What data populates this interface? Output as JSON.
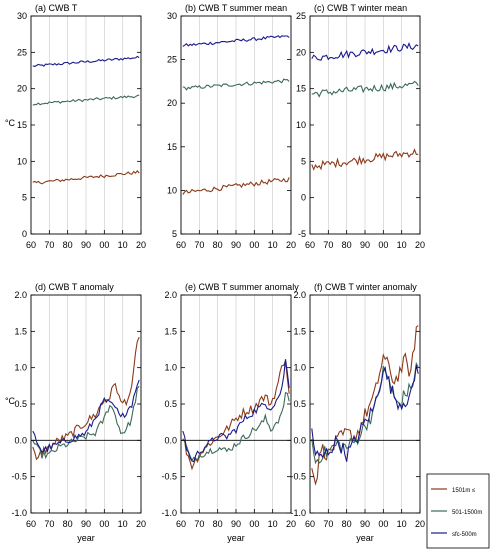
{
  "x_ticks": [
    "60",
    "70",
    "80",
    "90",
    "00",
    "10",
    "20"
  ],
  "unit_label": "°C",
  "colors": {
    "high": "#8b3a1a",
    "mid": "#3d6b57",
    "low": "#1a1a8c"
  },
  "legend": [
    "1501m ≤",
    "501-1500m",
    "sfc-500m"
  ],
  "chart_data": [
    {
      "type": "line",
      "title": "(a) CWB T",
      "xlabel": "",
      "ylabel": "°C",
      "ylim": [
        0,
        30
      ],
      "yticks": [
        "0",
        "5",
        "10",
        "15",
        "20",
        "25",
        "30"
      ],
      "x": [
        1961,
        2019
      ],
      "series": [
        {
          "name": "sfc-500m",
          "start": 23.1,
          "end": 24.3,
          "noise": 0.18
        },
        {
          "name": "501-1500m",
          "start": 17.9,
          "end": 19.0,
          "noise": 0.18
        },
        {
          "name": "1501m ≤",
          "start": 7.0,
          "end": 8.5,
          "noise": 0.22
        }
      ]
    },
    {
      "type": "line",
      "title": "(b) CWB T summer mean",
      "xlabel": "",
      "ylabel": "",
      "ylim": [
        5,
        30
      ],
      "yticks": [
        "5",
        "10",
        "15",
        "20",
        "25",
        "30"
      ],
      "x": [
        1961,
        2019
      ],
      "series": [
        {
          "name": "sfc-500m",
          "start": 26.6,
          "end": 27.7,
          "noise": 0.18
        },
        {
          "name": "501-1500m",
          "start": 21.7,
          "end": 22.6,
          "noise": 0.2
        },
        {
          "name": "1501m ≤",
          "start": 9.7,
          "end": 11.3,
          "noise": 0.28
        }
      ]
    },
    {
      "type": "line",
      "title": "(c) CWB T winter mean",
      "xlabel": "",
      "ylabel": "",
      "ylim": [
        -5,
        25
      ],
      "yticks": [
        "-5",
        "0",
        "5",
        "10",
        "15",
        "20",
        "25"
      ],
      "x": [
        1961,
        2019
      ],
      "series": [
        {
          "name": "sfc-500m",
          "start": 19.2,
          "end": 20.9,
          "noise": 0.5
        },
        {
          "name": "501-1500m",
          "start": 14.3,
          "end": 15.6,
          "noise": 0.5
        },
        {
          "name": "1501m ≤",
          "start": 4.3,
          "end": 6.3,
          "noise": 0.55
        }
      ]
    },
    {
      "type": "line",
      "title": "(d) CWB T anomaly",
      "xlabel": "year",
      "ylabel": "°C",
      "ylim": [
        -1.0,
        2.0
      ],
      "yticks": [
        "-1.0",
        "-0.5",
        "0.0",
        "0.5",
        "1.0",
        "1.5",
        "2.0"
      ],
      "x": [
        1961,
        2019
      ],
      "series": [
        {
          "name": "1501m ≤",
          "keys": [
            [
              1961,
              -0.1
            ],
            [
              1963,
              -0.3
            ],
            [
              1966,
              -0.15
            ],
            [
              1970,
              -0.1
            ],
            [
              1975,
              0.0
            ],
            [
              1980,
              0.05
            ],
            [
              1985,
              0.15
            ],
            [
              1990,
              0.25
            ],
            [
              1995,
              0.35
            ],
            [
              2000,
              0.55
            ],
            [
              2003,
              0.6
            ],
            [
              2006,
              0.8
            ],
            [
              2009,
              0.5
            ],
            [
              2012,
              0.55
            ],
            [
              2015,
              0.7
            ],
            [
              2018,
              1.4
            ]
          ],
          "noise": 0.06
        },
        {
          "name": "501-1500m",
          "keys": [
            [
              1961,
              0.0
            ],
            [
              1963,
              -0.1
            ],
            [
              1966,
              -0.2
            ],
            [
              1970,
              -0.2
            ],
            [
              1975,
              -0.1
            ],
            [
              1980,
              -0.05
            ],
            [
              1985,
              0.0
            ],
            [
              1990,
              0.05
            ],
            [
              1995,
              0.1
            ],
            [
              2000,
              0.3
            ],
            [
              2003,
              0.5
            ],
            [
              2006,
              0.35
            ],
            [
              2009,
              0.1
            ],
            [
              2012,
              0.15
            ],
            [
              2015,
              0.3
            ],
            [
              2018,
              0.7
            ]
          ],
          "noise": 0.05
        },
        {
          "name": "sfc-500m",
          "keys": [
            [
              1961,
              0.1
            ],
            [
              1963,
              0.0
            ],
            [
              1966,
              -0.15
            ],
            [
              1970,
              -0.1
            ],
            [
              1975,
              -0.05
            ],
            [
              1980,
              0.0
            ],
            [
              1985,
              0.05
            ],
            [
              1990,
              0.1
            ],
            [
              1995,
              0.3
            ],
            [
              2000,
              0.55
            ],
            [
              2003,
              0.5
            ],
            [
              2006,
              0.45
            ],
            [
              2009,
              0.3
            ],
            [
              2012,
              0.4
            ],
            [
              2015,
              0.5
            ],
            [
              2018,
              0.8
            ]
          ],
          "noise": 0.05
        }
      ]
    },
    {
      "type": "line",
      "title": "(e) CWB T summer anomaly",
      "xlabel": "year",
      "ylabel": "",
      "ylim": [
        -1.0,
        2.0
      ],
      "yticks": [
        "-1.0",
        "-0.5",
        "0.0",
        "0.5",
        "1.0",
        "1.5",
        "2.0"
      ],
      "x": [
        1961,
        2019
      ],
      "series": [
        {
          "name": "1501m ≤",
          "keys": [
            [
              1961,
              0.05
            ],
            [
              1963,
              -0.15
            ],
            [
              1966,
              -0.35
            ],
            [
              1970,
              -0.2
            ],
            [
              1975,
              -0.05
            ],
            [
              1980,
              0.05
            ],
            [
              1985,
              0.15
            ],
            [
              1990,
              0.3
            ],
            [
              1995,
              0.4
            ],
            [
              2000,
              0.45
            ],
            [
              2003,
              0.55
            ],
            [
              2006,
              0.6
            ],
            [
              2009,
              0.5
            ],
            [
              2012,
              0.7
            ],
            [
              2015,
              1.0
            ],
            [
              2017,
              1.15
            ],
            [
              2019,
              0.6
            ]
          ],
          "noise": 0.06
        },
        {
          "name": "501-1500m",
          "keys": [
            [
              1961,
              0.05
            ],
            [
              1963,
              -0.1
            ],
            [
              1966,
              -0.3
            ],
            [
              1970,
              -0.2
            ],
            [
              1975,
              -0.15
            ],
            [
              1980,
              -0.1
            ],
            [
              1985,
              -0.15
            ],
            [
              1990,
              -0.05
            ],
            [
              1995,
              0.05
            ],
            [
              2000,
              0.15
            ],
            [
              2003,
              0.2
            ],
            [
              2006,
              0.3
            ],
            [
              2009,
              0.15
            ],
            [
              2012,
              0.25
            ],
            [
              2015,
              0.35
            ],
            [
              2017,
              0.65
            ],
            [
              2019,
              0.55
            ]
          ],
          "noise": 0.05
        },
        {
          "name": "sfc-500m",
          "keys": [
            [
              1961,
              0.15
            ],
            [
              1963,
              -0.1
            ],
            [
              1966,
              -0.3
            ],
            [
              1970,
              -0.15
            ],
            [
              1975,
              -0.05
            ],
            [
              1980,
              0.05
            ],
            [
              1985,
              0.05
            ],
            [
              1990,
              0.15
            ],
            [
              1995,
              0.3
            ],
            [
              2000,
              0.4
            ],
            [
              2003,
              0.45
            ],
            [
              2006,
              0.5
            ],
            [
              2009,
              0.45
            ],
            [
              2012,
              0.55
            ],
            [
              2015,
              0.7
            ],
            [
              2017,
              1.1
            ],
            [
              2019,
              0.75
            ]
          ],
          "noise": 0.05
        }
      ]
    },
    {
      "type": "line",
      "title": "(f) CWB T winter anomaly",
      "xlabel": "year",
      "ylabel": "",
      "ylim": [
        -1.0,
        2.0
      ],
      "yticks": [
        "-1.0",
        "-0.5",
        "0.0",
        "0.5",
        "1.0",
        "1.5",
        "2.0"
      ],
      "x": [
        1961,
        2019
      ],
      "series": [
        {
          "name": "1501m ≤",
          "keys": [
            [
              1961,
              -0.3
            ],
            [
              1963,
              -0.6
            ],
            [
              1966,
              -0.1
            ],
            [
              1970,
              -0.2
            ],
            [
              1975,
              0.0
            ],
            [
              1980,
              0.1
            ],
            [
              1985,
              0.05
            ],
            [
              1990,
              0.35
            ],
            [
              1995,
              0.6
            ],
            [
              2000,
              1.15
            ],
            [
              2003,
              1.0
            ],
            [
              2006,
              0.8
            ],
            [
              2009,
              0.95
            ],
            [
              2012,
              1.1
            ],
            [
              2015,
              0.9
            ],
            [
              2018,
              1.55
            ]
          ],
          "noise": 0.1
        },
        {
          "name": "501-1500m",
          "keys": [
            [
              1961,
              0.0
            ],
            [
              1963,
              -0.3
            ],
            [
              1966,
              -0.2
            ],
            [
              1970,
              -0.15
            ],
            [
              1975,
              -0.05
            ],
            [
              1980,
              -0.1
            ],
            [
              1985,
              0.0
            ],
            [
              1990,
              0.2
            ],
            [
              1995,
              0.4
            ],
            [
              2000,
              0.95
            ],
            [
              2003,
              0.85
            ],
            [
              2006,
              0.55
            ],
            [
              2009,
              0.5
            ],
            [
              2012,
              0.65
            ],
            [
              2015,
              0.7
            ],
            [
              2018,
              1.0
            ]
          ],
          "noise": 0.1
        },
        {
          "name": "sfc-500m",
          "keys": [
            [
              1961,
              0.15
            ],
            [
              1963,
              -0.2
            ],
            [
              1966,
              -0.25
            ],
            [
              1970,
              -0.15
            ],
            [
              1975,
              0.0
            ],
            [
              1980,
              -0.2
            ],
            [
              1985,
              0.0
            ],
            [
              1990,
              0.25
            ],
            [
              1995,
              0.45
            ],
            [
              2000,
              1.0
            ],
            [
              2003,
              0.8
            ],
            [
              2006,
              0.6
            ],
            [
              2009,
              0.5
            ],
            [
              2012,
              0.55
            ],
            [
              2015,
              0.6
            ],
            [
              2018,
              1.0
            ]
          ],
          "noise": 0.1
        }
      ]
    }
  ]
}
